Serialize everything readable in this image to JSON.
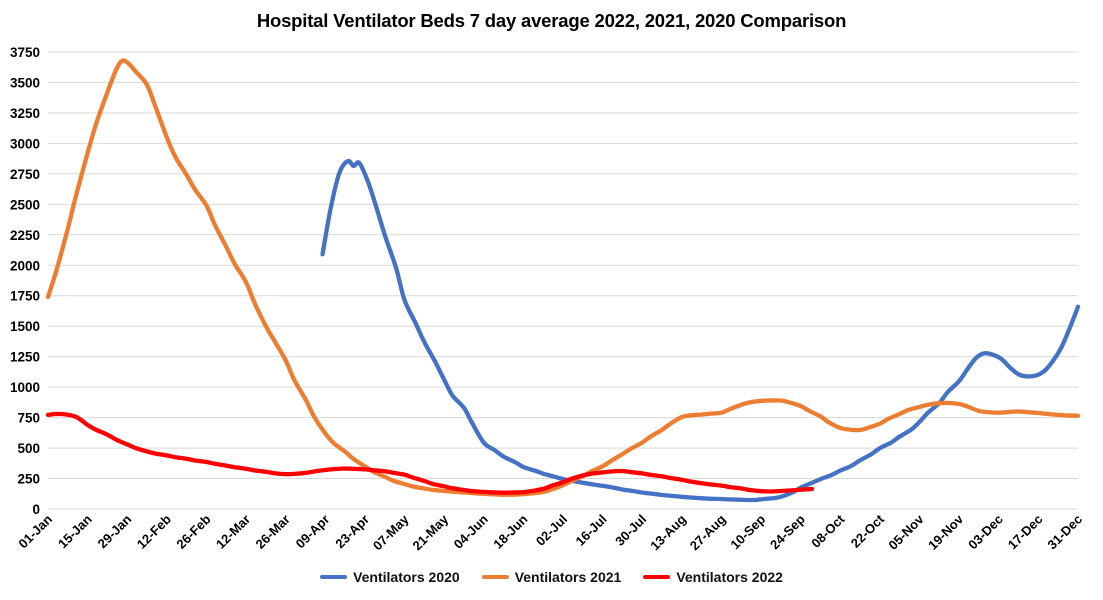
{
  "chart_data": {
    "type": "line",
    "title": "Hospital Ventilator Beds 7 day average 2022, 2021, 2020 Comparison",
    "xlabel": "",
    "ylabel": "",
    "y_axis": {
      "min": 0,
      "max": 3750,
      "step": 250,
      "tick_labels": [
        "0",
        "250",
        "500",
        "750",
        "1000",
        "1250",
        "1500",
        "1750",
        "2000",
        "2250",
        "2500",
        "2750",
        "3000",
        "3250",
        "3500",
        "3750"
      ]
    },
    "x_axis": {
      "tick_interval_days": 14,
      "tick_labels": [
        "01-Jan",
        "15-Jan",
        "29-Jan",
        "12-Feb",
        "26-Feb",
        "12-Mar",
        "26-Mar",
        "09-Apr",
        "23-Apr",
        "07-May",
        "21-May",
        "04-Jun",
        "18-Jun",
        "02-Jul",
        "16-Jul",
        "30-Jul",
        "13-Aug",
        "27-Aug",
        "10-Sep",
        "24-Sep",
        "08-Oct",
        "22-Oct",
        "05-Nov",
        "19-Nov",
        "03-Dec",
        "17-Dec",
        "31-Dec"
      ]
    },
    "grid": "horizontal",
    "gridline_color": "#d9d9d9",
    "legend_position": "bottom",
    "series": [
      {
        "name": "Ventilators 2020",
        "color": "#4472C4",
        "points": [
          [
            97,
            2090
          ],
          [
            100,
            2480
          ],
          [
            103,
            2760
          ],
          [
            106,
            2855
          ],
          [
            108,
            2815
          ],
          [
            110,
            2840
          ],
          [
            113,
            2690
          ],
          [
            116,
            2480
          ],
          [
            119,
            2250
          ],
          [
            123,
            1980
          ],
          [
            126,
            1715
          ],
          [
            130,
            1520
          ],
          [
            133,
            1370
          ],
          [
            137,
            1200
          ],
          [
            140,
            1060
          ],
          [
            143,
            930
          ],
          [
            147,
            830
          ],
          [
            150,
            700
          ],
          [
            154,
            545
          ],
          [
            158,
            480
          ],
          [
            161,
            430
          ],
          [
            165,
            385
          ],
          [
            168,
            345
          ],
          [
            172,
            315
          ],
          [
            175,
            290
          ],
          [
            179,
            265
          ],
          [
            182,
            245
          ],
          [
            186,
            228
          ],
          [
            189,
            215
          ],
          [
            193,
            200
          ],
          [
            196,
            190
          ],
          [
            200,
            175
          ],
          [
            203,
            160
          ],
          [
            207,
            147
          ],
          [
            210,
            135
          ],
          [
            214,
            124
          ],
          [
            217,
            115
          ],
          [
            221,
            107
          ],
          [
            224,
            100
          ],
          [
            228,
            93
          ],
          [
            231,
            88
          ],
          [
            235,
            84
          ],
          [
            238,
            82
          ],
          [
            242,
            78
          ],
          [
            246,
            75
          ],
          [
            250,
            74
          ],
          [
            252,
            80
          ],
          [
            256,
            88
          ],
          [
            259,
            100
          ],
          [
            263,
            135
          ],
          [
            266,
            175
          ],
          [
            270,
            215
          ],
          [
            273,
            245
          ],
          [
            277,
            280
          ],
          [
            280,
            315
          ],
          [
            284,
            355
          ],
          [
            287,
            400
          ],
          [
            291,
            450
          ],
          [
            294,
            500
          ],
          [
            298,
            545
          ],
          [
            301,
            595
          ],
          [
            305,
            650
          ],
          [
            308,
            715
          ],
          [
            311,
            790
          ],
          [
            315,
            870
          ],
          [
            318,
            960
          ],
          [
            322,
            1050
          ],
          [
            325,
            1150
          ],
          [
            328,
            1240
          ],
          [
            331,
            1278
          ],
          [
            334,
            1265
          ],
          [
            337,
            1230
          ],
          [
            340,
            1160
          ],
          [
            343,
            1105
          ],
          [
            346,
            1088
          ],
          [
            349,
            1095
          ],
          [
            352,
            1130
          ],
          [
            355,
            1210
          ],
          [
            358,
            1320
          ],
          [
            361,
            1480
          ],
          [
            364,
            1660
          ]
        ]
      },
      {
        "name": "Ventilators 2021",
        "color": "#ED7D31",
        "points": [
          [
            0,
            1740
          ],
          [
            3,
            1960
          ],
          [
            7,
            2300
          ],
          [
            10,
            2580
          ],
          [
            14,
            2920
          ],
          [
            17,
            3160
          ],
          [
            21,
            3420
          ],
          [
            24,
            3600
          ],
          [
            26,
            3675
          ],
          [
            28,
            3665
          ],
          [
            31,
            3590
          ],
          [
            35,
            3480
          ],
          [
            38,
            3300
          ],
          [
            42,
            3050
          ],
          [
            45,
            2890
          ],
          [
            49,
            2740
          ],
          [
            52,
            2620
          ],
          [
            56,
            2490
          ],
          [
            59,
            2330
          ],
          [
            63,
            2150
          ],
          [
            66,
            2010
          ],
          [
            70,
            1860
          ],
          [
            73,
            1690
          ],
          [
            77,
            1500
          ],
          [
            80,
            1380
          ],
          [
            84,
            1220
          ],
          [
            87,
            1060
          ],
          [
            91,
            900
          ],
          [
            94,
            760
          ],
          [
            98,
            620
          ],
          [
            101,
            540
          ],
          [
            105,
            470
          ],
          [
            108,
            410
          ],
          [
            112,
            350
          ],
          [
            115,
            305
          ],
          [
            119,
            265
          ],
          [
            122,
            232
          ],
          [
            126,
            205
          ],
          [
            129,
            185
          ],
          [
            133,
            168
          ],
          [
            136,
            157
          ],
          [
            140,
            148
          ],
          [
            144,
            140
          ],
          [
            147,
            135
          ],
          [
            151,
            129
          ],
          [
            154,
            124
          ],
          [
            158,
            120
          ],
          [
            161,
            117
          ],
          [
            164,
            117
          ],
          [
            168,
            122
          ],
          [
            171,
            128
          ],
          [
            175,
            140
          ],
          [
            178,
            160
          ],
          [
            182,
            195
          ],
          [
            185,
            230
          ],
          [
            189,
            270
          ],
          [
            192,
            308
          ],
          [
            196,
            350
          ],
          [
            199,
            395
          ],
          [
            203,
            450
          ],
          [
            206,
            495
          ],
          [
            210,
            545
          ],
          [
            213,
            595
          ],
          [
            217,
            650
          ],
          [
            220,
            700
          ],
          [
            224,
            755
          ],
          [
            227,
            768
          ],
          [
            231,
            775
          ],
          [
            234,
            782
          ],
          [
            238,
            790
          ],
          [
            241,
            820
          ],
          [
            245,
            855
          ],
          [
            248,
            875
          ],
          [
            252,
            888
          ],
          [
            255,
            890
          ],
          [
            259,
            890
          ],
          [
            262,
            875
          ],
          [
            266,
            845
          ],
          [
            269,
            805
          ],
          [
            273,
            760
          ],
          [
            276,
            710
          ],
          [
            280,
            665
          ],
          [
            283,
            652
          ],
          [
            287,
            648
          ],
          [
            290,
            668
          ],
          [
            294,
            700
          ],
          [
            297,
            740
          ],
          [
            301,
            780
          ],
          [
            304,
            812
          ],
          [
            308,
            838
          ],
          [
            311,
            856
          ],
          [
            315,
            868
          ],
          [
            318,
            870
          ],
          [
            322,
            862
          ],
          [
            325,
            840
          ],
          [
            329,
            805
          ],
          [
            332,
            795
          ],
          [
            336,
            790
          ],
          [
            339,
            795
          ],
          [
            343,
            800
          ],
          [
            346,
            795
          ],
          [
            350,
            788
          ],
          [
            353,
            780
          ],
          [
            357,
            772
          ],
          [
            360,
            768
          ],
          [
            364,
            765
          ]
        ]
      },
      {
        "name": "Ventilators 2022",
        "color": "#FF0000",
        "points": [
          [
            0,
            772
          ],
          [
            3,
            780
          ],
          [
            6,
            776
          ],
          [
            10,
            755
          ],
          [
            14,
            690
          ],
          [
            17,
            650
          ],
          [
            21,
            610
          ],
          [
            24,
            570
          ],
          [
            28,
            530
          ],
          [
            31,
            500
          ],
          [
            35,
            472
          ],
          [
            38,
            455
          ],
          [
            42,
            440
          ],
          [
            45,
            425
          ],
          [
            49,
            412
          ],
          [
            52,
            398
          ],
          [
            56,
            386
          ],
          [
            59,
            371
          ],
          [
            63,
            356
          ],
          [
            66,
            342
          ],
          [
            70,
            330
          ],
          [
            73,
            317
          ],
          [
            77,
            305
          ],
          [
            80,
            294
          ],
          [
            84,
            286
          ],
          [
            87,
            288
          ],
          [
            91,
            296
          ],
          [
            94,
            308
          ],
          [
            98,
            320
          ],
          [
            101,
            327
          ],
          [
            105,
            332
          ],
          [
            108,
            330
          ],
          [
            112,
            325
          ],
          [
            115,
            318
          ],
          [
            119,
            310
          ],
          [
            122,
            297
          ],
          [
            126,
            282
          ],
          [
            129,
            258
          ],
          [
            133,
            230
          ],
          [
            136,
            206
          ],
          [
            140,
            186
          ],
          [
            143,
            170
          ],
          [
            147,
            156
          ],
          [
            150,
            147
          ],
          [
            154,
            140
          ],
          [
            157,
            136
          ],
          [
            161,
            134
          ],
          [
            164,
            135
          ],
          [
            168,
            138
          ],
          [
            171,
            148
          ],
          [
            175,
            165
          ],
          [
            178,
            190
          ],
          [
            182,
            220
          ],
          [
            185,
            248
          ],
          [
            189,
            275
          ],
          [
            192,
            290
          ],
          [
            196,
            300
          ],
          [
            199,
            308
          ],
          [
            203,
            312
          ],
          [
            206,
            303
          ],
          [
            210,
            292
          ],
          [
            213,
            280
          ],
          [
            217,
            268
          ],
          [
            220,
            254
          ],
          [
            224,
            240
          ],
          [
            227,
            226
          ],
          [
            231,
            212
          ],
          [
            234,
            202
          ],
          [
            238,
            192
          ],
          [
            241,
            180
          ],
          [
            245,
            168
          ],
          [
            248,
            156
          ],
          [
            252,
            146
          ],
          [
            255,
            144
          ],
          [
            259,
            148
          ],
          [
            262,
            152
          ],
          [
            266,
            158
          ],
          [
            270,
            164
          ]
        ]
      }
    ]
  }
}
